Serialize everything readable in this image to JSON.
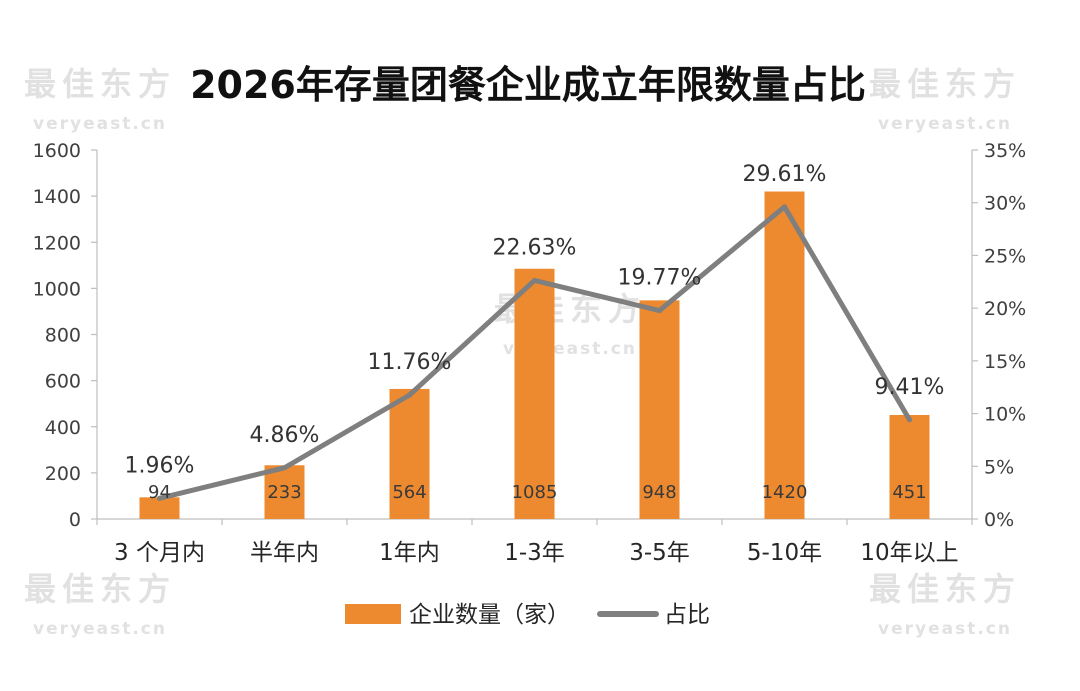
{
  "watermark": {
    "cn": "最佳东方",
    "en": "veryeast.cn"
  },
  "chart_data": {
    "type": "bar",
    "title": "2026年存量团餐企业成立年限数量占比",
    "categories": [
      "3 个月内",
      "半年内",
      "1年内",
      "1-3年",
      "3-5年",
      "5-10年",
      "10年以上"
    ],
    "series": [
      {
        "name": "企业数量（家）",
        "type": "bar",
        "axis": "left",
        "color": "#ED8A2F",
        "values": [
          94,
          233,
          564,
          1085,
          948,
          1420,
          451
        ],
        "labels": [
          "94",
          "233",
          "564",
          "1085",
          "948",
          "1420",
          "451"
        ]
      },
      {
        "name": "占比",
        "type": "line",
        "axis": "right",
        "color": "#7F7F7F",
        "values": [
          1.96,
          4.86,
          11.76,
          22.63,
          19.77,
          29.61,
          9.41
        ],
        "labels": [
          "1.96%",
          "4.86%",
          "11.76%",
          "22.63%",
          "19.77%",
          "29.61%",
          "9.41%"
        ]
      }
    ],
    "y_left": {
      "min": 0,
      "max": 1600,
      "ticks": [
        "0",
        "200",
        "400",
        "600",
        "800",
        "1000",
        "1200",
        "1400",
        "1600"
      ]
    },
    "y_right": {
      "min": 0,
      "max": 35,
      "ticks": [
        "0%",
        "5%",
        "10%",
        "15%",
        "20%",
        "25%",
        "30%",
        "35%"
      ]
    },
    "legend_position": "bottom",
    "grid": false
  }
}
